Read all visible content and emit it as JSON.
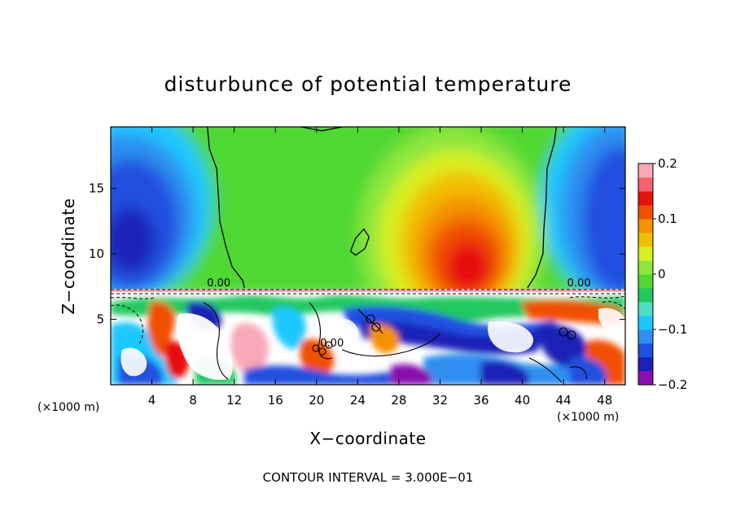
{
  "chart_data": {
    "type": "heatmap",
    "title": "disturbunce of potential temperature",
    "xlabel": "X−coordinate",
    "ylabel": "Z−coordinate",
    "x_unit": "(×1000 m)",
    "y_unit": "(×1000 m)",
    "note": "CONTOUR INTERVAL = 3.000E−01",
    "xlim": [
      0,
      50
    ],
    "ylim": [
      0,
      19.7
    ],
    "x_ticks": [
      4,
      8,
      12,
      16,
      20,
      24,
      28,
      32,
      36,
      40,
      44,
      48
    ],
    "x_tick_labels": [
      "4",
      "8",
      "12",
      "16",
      "20",
      "24",
      "28",
      "32",
      "36",
      "40",
      "44",
      "48"
    ],
    "y_ticks": [
      5,
      10,
      15
    ],
    "y_tick_labels": [
      "5",
      "10",
      "15"
    ],
    "colorbar": {
      "min": -0.2,
      "max": 0.2,
      "ticks": [
        0.2,
        0.1,
        0,
        -0.1,
        -0.2
      ],
      "tick_labels": [
        "0.2",
        "0.1",
        "0",
        "−0.1",
        "−0.2"
      ],
      "colors": [
        "#8a10b0",
        "#1f20b8",
        "#2050e0",
        "#2f8ff0",
        "#1ec8ff",
        "#4de0c0",
        "#20c860",
        "#50d830",
        "#8ce63c",
        "#d8f020",
        "#f0c000",
        "#f59000",
        "#f05000",
        "#e81010",
        "#f86070",
        "#f8a8b8"
      ]
    },
    "contour_labels": [
      {
        "text": "0.00",
        "x": 10.5,
        "y": 7.4
      },
      {
        "text": "0.00",
        "x": 45.5,
        "y": 7.4
      },
      {
        "text": "0.00",
        "x": 21.5,
        "y": 2.8
      }
    ],
    "zero_contours": [
      [
        [
          9.4,
          19.7
        ],
        [
          9.6,
          18.0
        ],
        [
          10.3,
          16.5
        ],
        [
          10.5,
          14.0
        ],
        [
          10.6,
          12.5
        ],
        [
          11.2,
          10.5
        ],
        [
          11.8,
          9.0
        ],
        [
          12.8,
          8.0
        ],
        [
          13.0,
          7.4
        ]
      ],
      [
        [
          40.5,
          7.4
        ],
        [
          41.3,
          8.4
        ],
        [
          42.0,
          10.0
        ],
        [
          42.1,
          12.0
        ],
        [
          42.3,
          14.0
        ],
        [
          42.4,
          16.5
        ],
        [
          43.1,
          18.5
        ],
        [
          43.3,
          19.7
        ]
      ],
      [
        [
          18.5,
          19.7
        ],
        [
          20.5,
          19.4
        ],
        [
          22.5,
          19.7
        ]
      ],
      [
        [
          23.3,
          10.2
        ],
        [
          23.8,
          11.2
        ],
        [
          24.6,
          11.9
        ],
        [
          25.1,
          11.3
        ],
        [
          24.7,
          10.4
        ],
        [
          23.8,
          9.9
        ],
        [
          23.3,
          10.2
        ]
      ]
    ]
  }
}
